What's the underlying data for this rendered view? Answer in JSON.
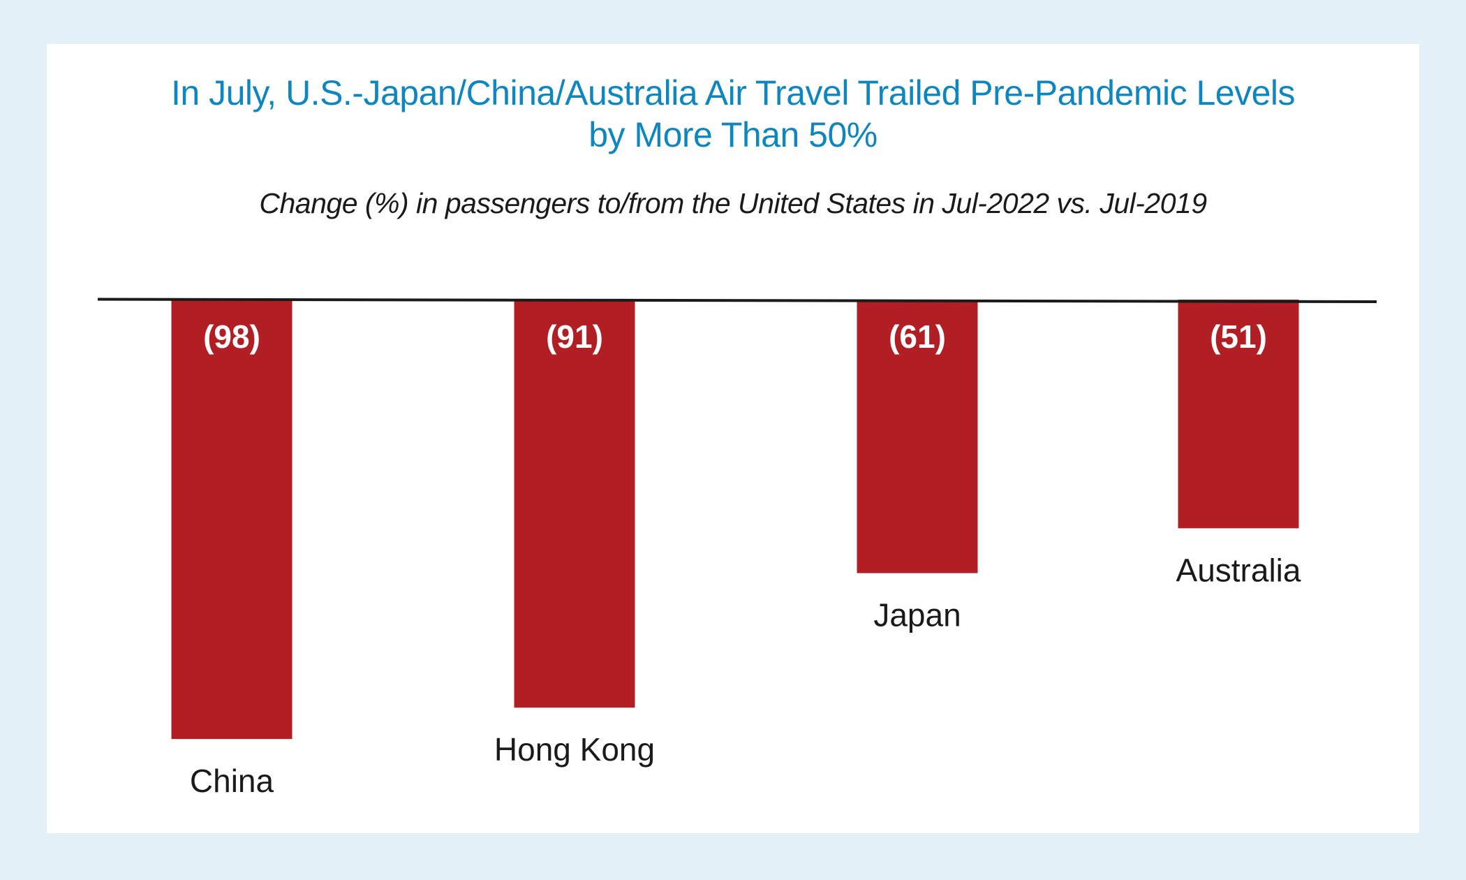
{
  "style": {
    "background": "#e3f0f7",
    "card": "#ffffff",
    "title_color": "#0e86bf",
    "bar_color": "#b11f25",
    "baseline_color": "#1a1a1a",
    "value_label_color": "#ffffff"
  },
  "chart_data": {
    "type": "bar",
    "orientation": "vertical",
    "title": "In July, U.S.-Japan/China/Australia Air Travel Trailed Pre-Pandemic Levels by More Than 50%",
    "title_lines": [
      "In July, U.S.-Japan/China/Australia Air Travel Trailed Pre-Pandemic Levels",
      "by More Than 50%"
    ],
    "subtitle": "Change (%) in passengers to/from the United States in Jul-2022 vs. Jul-2019",
    "xlabel": "",
    "ylabel": "",
    "ylim": [
      -100,
      0
    ],
    "grid": false,
    "legend": "none",
    "categories": [
      "China",
      "Hong Kong",
      "Japan",
      "Australia"
    ],
    "values": [
      -98,
      -91,
      -61,
      -51
    ],
    "value_labels": [
      "(98)",
      "(91)",
      "(61)",
      "(51)"
    ]
  }
}
